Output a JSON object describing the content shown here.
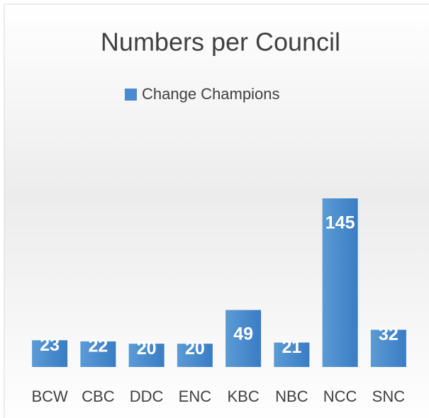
{
  "chart_data": {
    "type": "bar",
    "title": "Numbers per Council",
    "categories": [
      "BCW",
      "CBC",
      "DDC",
      "ENC",
      "KBC",
      "NBC",
      "NCC",
      "SNC"
    ],
    "series": [
      {
        "name": "Change Champions",
        "color": "#4a8bd0",
        "values": [
          23,
          22,
          20,
          20,
          49,
          21,
          145,
          32
        ]
      }
    ]
  }
}
